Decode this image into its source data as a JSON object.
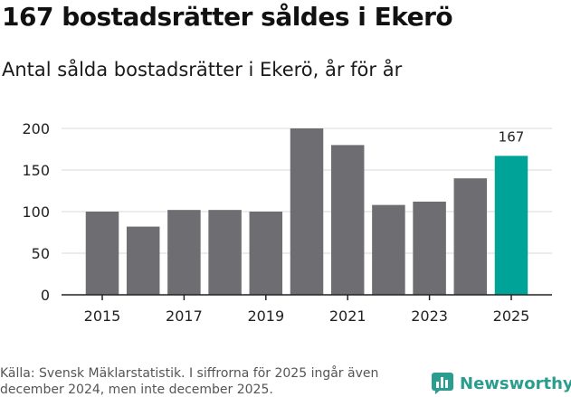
{
  "header": {
    "title": "167 bostadsrätter såldes i Ekerö",
    "subtitle": "Antal sålda bostadsrätter i Ekerö, år för år"
  },
  "chart_data": {
    "type": "bar",
    "categories": [
      "2015",
      "2016",
      "2017",
      "2018",
      "2019",
      "2020",
      "2021",
      "2022",
      "2023",
      "2024",
      "2025"
    ],
    "values": [
      100,
      82,
      102,
      102,
      100,
      200,
      180,
      108,
      112,
      140,
      167
    ],
    "xticks": [
      "2015",
      "2017",
      "2019",
      "2021",
      "2023",
      "2025"
    ],
    "yticks": [
      0,
      50,
      100,
      150,
      200
    ],
    "ylim": [
      0,
      200
    ],
    "highlight_index": 10,
    "data_label": "167",
    "colors": {
      "default": "#6e6d72",
      "highlight": "#00a398",
      "grid": "#d9d9d9",
      "axis": "#222222"
    }
  },
  "footer": {
    "source": "Källa: Svensk Mäklarstatistik. I siffrorna för 2025 ingår även december 2024, men inte december 2025."
  },
  "brand": {
    "name": "Newsworthy",
    "icon": "bar-chart-speech-icon",
    "color": "#2a9d8f"
  }
}
